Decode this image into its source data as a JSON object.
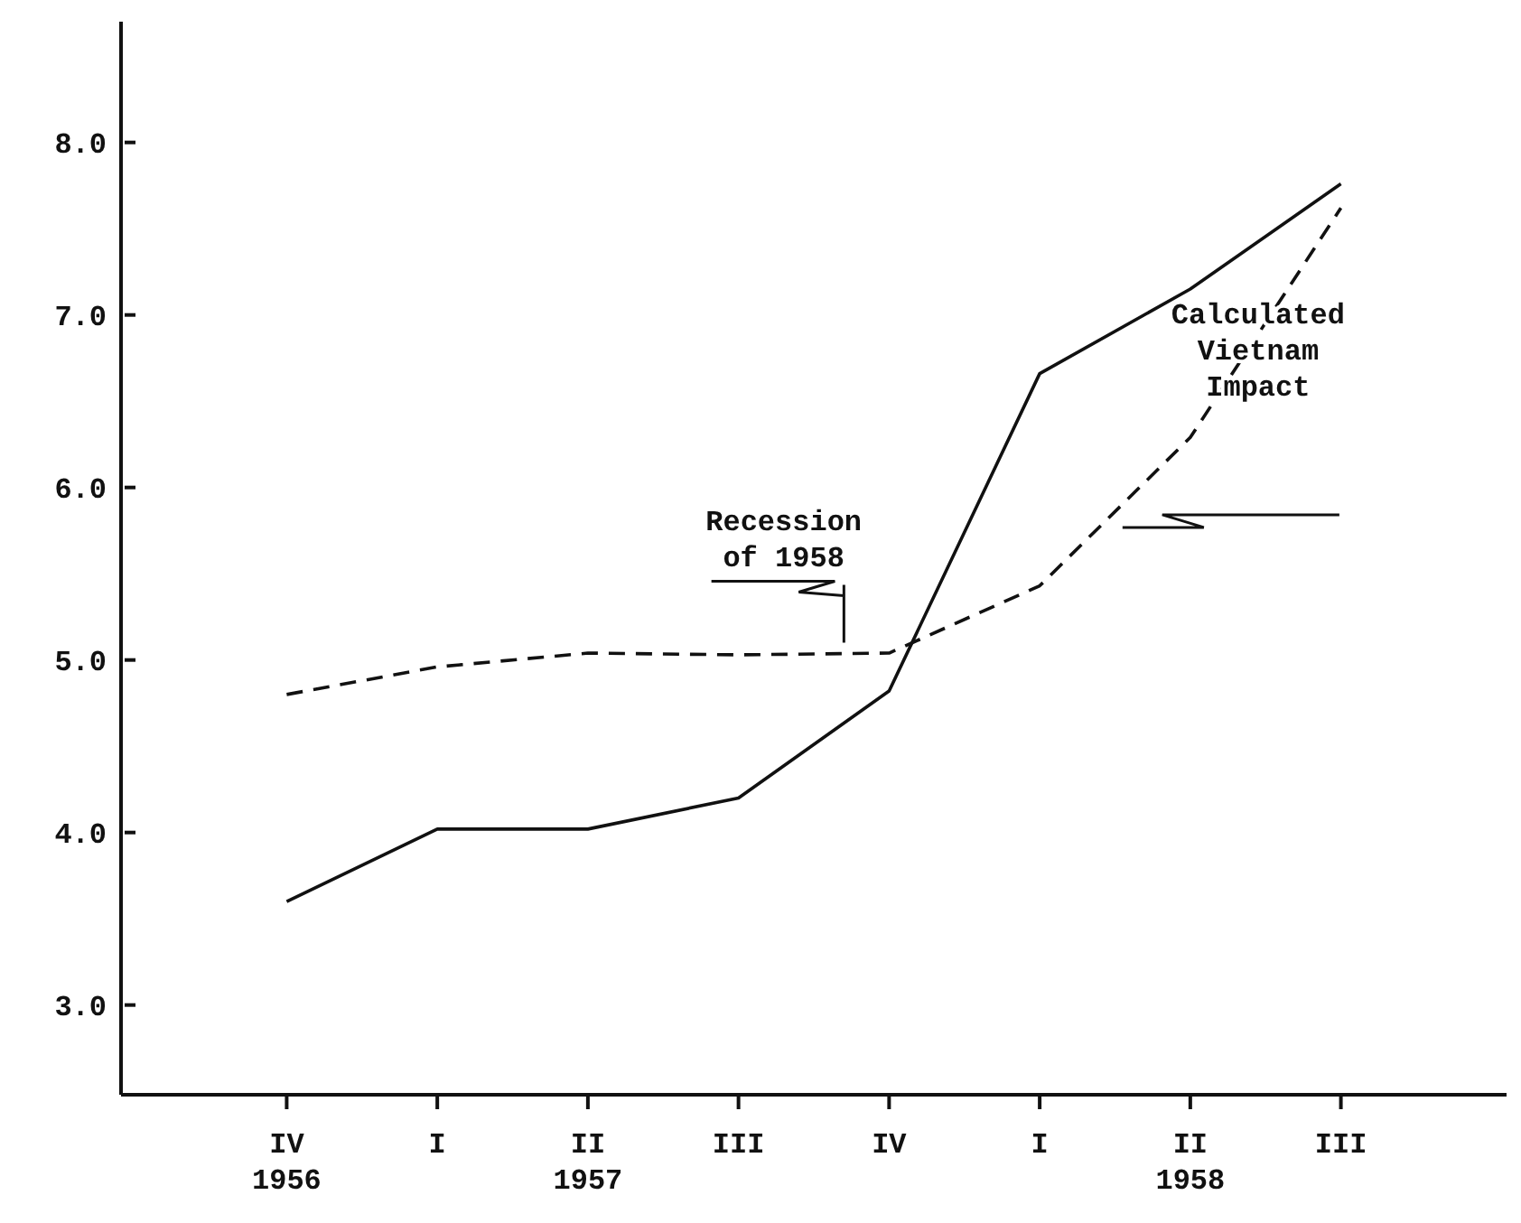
{
  "chart_data": {
    "type": "line",
    "categories": [
      "IV\n1956",
      "I",
      "II\n1957",
      "III",
      "IV",
      "I",
      "II\n1958",
      "III"
    ],
    "series": [
      {
        "color": "#111111",
        "line_style": "solid",
        "values": [
          3.6,
          4.02,
          4.02,
          4.2,
          4.82,
          6.66,
          7.15,
          7.76
        ]
      },
      {
        "color": "#111111",
        "line_style": "dashed",
        "values": [
          4.8,
          4.96,
          5.04,
          5.03,
          5.04,
          5.43,
          6.29,
          7.62
        ]
      }
    ],
    "annotations": [
      "Recession\nof 1958",
      "Calculated\nVietnam\nImpact"
    ],
    "ylim": [
      2.48,
      8.7
    ],
    "yticks": [
      {
        "value": 3,
        "label": "3.0"
      },
      {
        "value": 4,
        "label": "4.0"
      },
      {
        "value": 5,
        "label": "5.0"
      },
      {
        "value": 6,
        "label": "6.0"
      },
      {
        "value": 7,
        "label": "7.0"
      },
      {
        "value": 8,
        "label": "8.0"
      }
    ],
    "grid": false,
    "legend": false,
    "marker": "none"
  }
}
